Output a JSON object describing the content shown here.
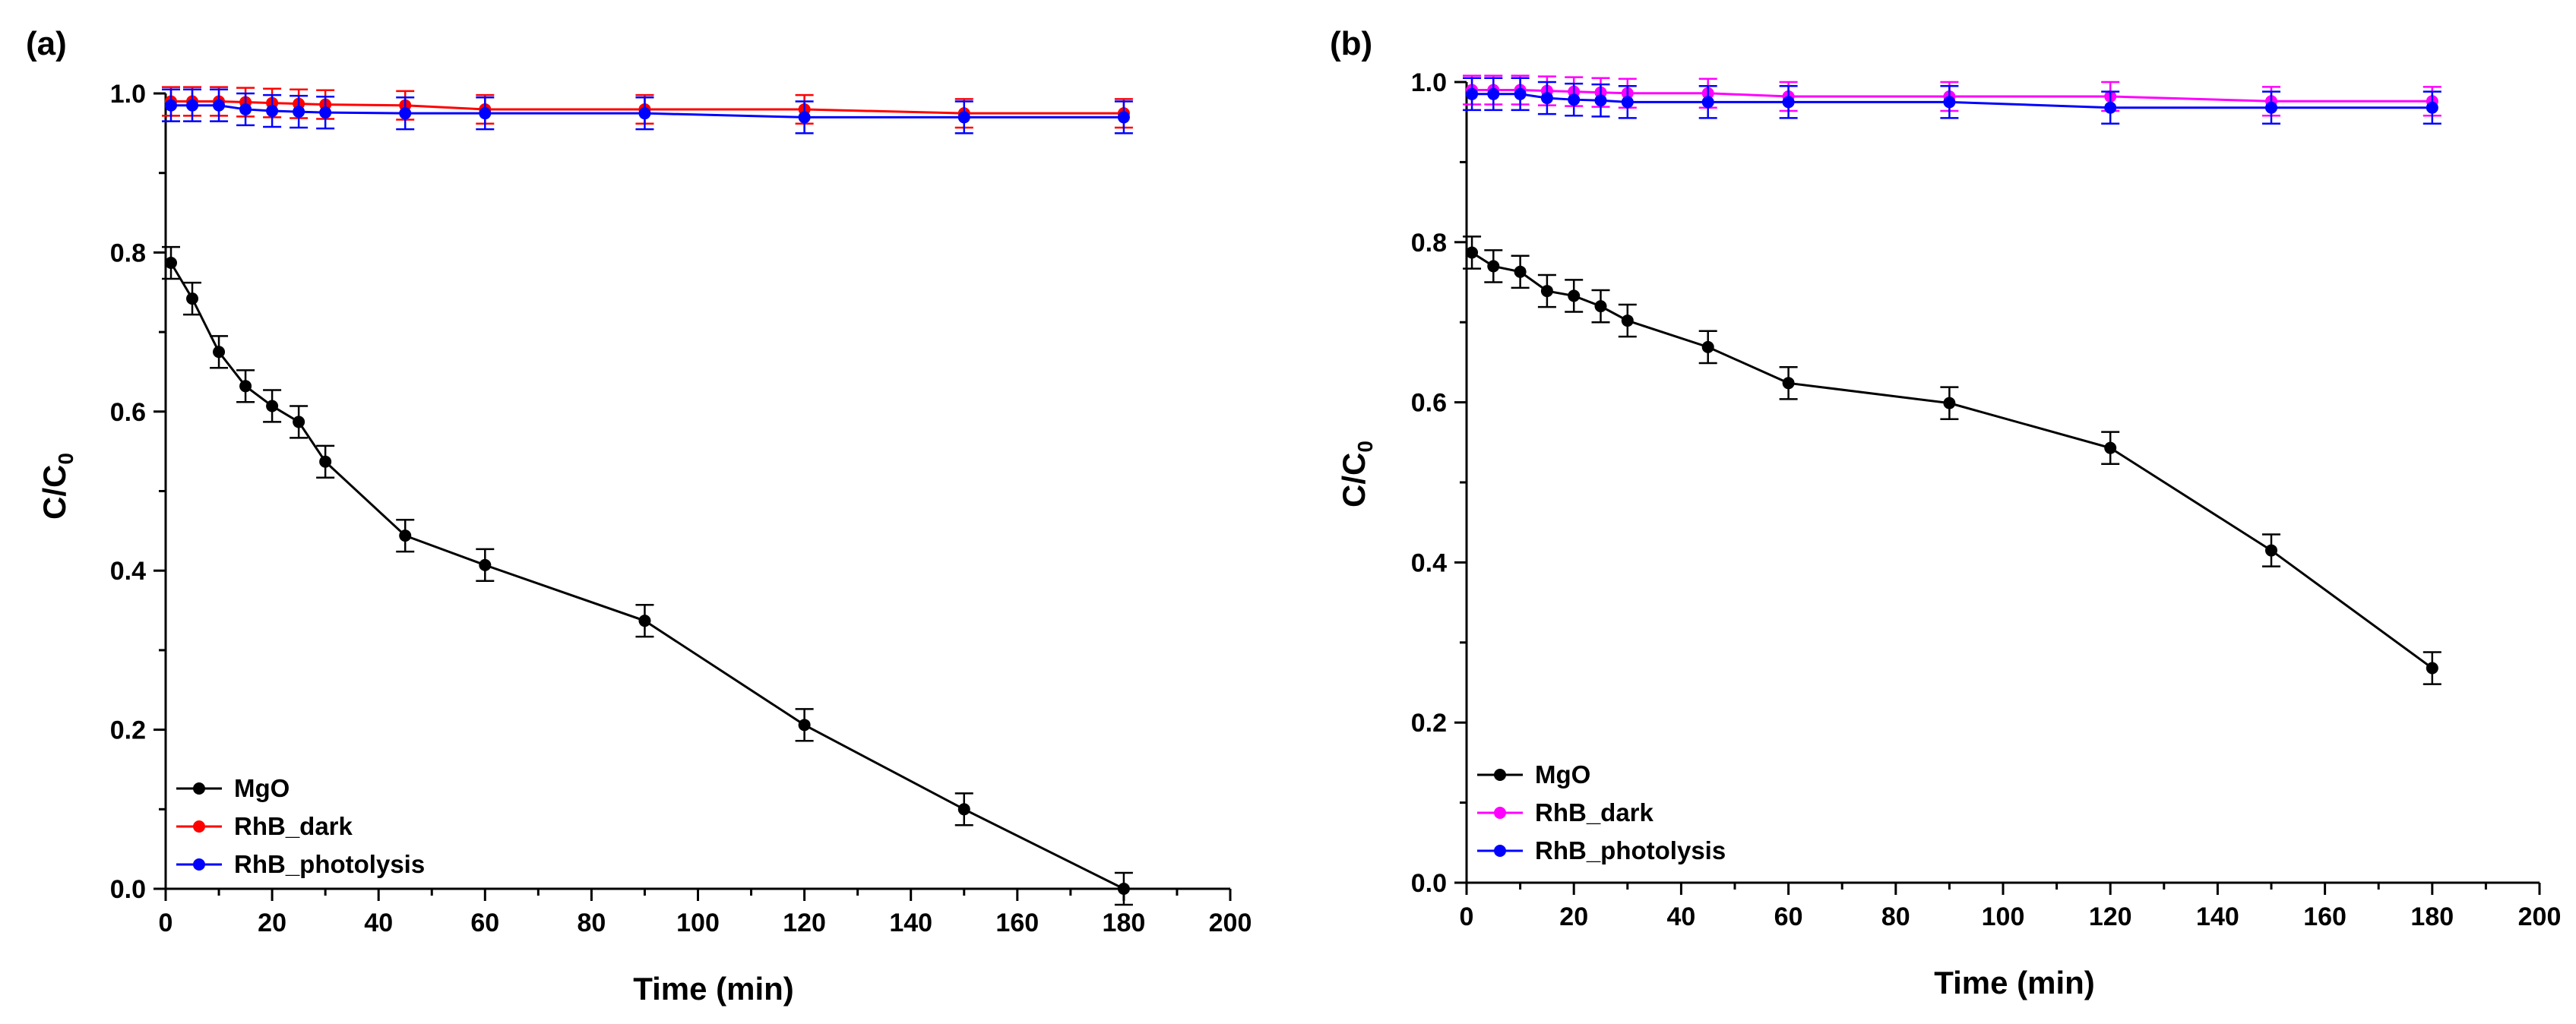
{
  "chart_data": [
    {
      "type": "line",
      "panel_label": "(a)",
      "title": "",
      "xlabel": "Time (min)",
      "ylabel_main": "C/C",
      "ylabel_sub": "0",
      "xlim": [
        0,
        200
      ],
      "ylim": [
        0,
        1.0
      ],
      "xticks": [
        0,
        20,
        40,
        60,
        80,
        100,
        120,
        140,
        160,
        180,
        200
      ],
      "yticks": [
        0.0,
        0.2,
        0.4,
        0.6,
        0.8,
        1.0
      ],
      "xtick_labels": [
        "0",
        "20",
        "40",
        "60",
        "80",
        "100",
        "120",
        "140",
        "160",
        "180",
        "200"
      ],
      "ytick_labels": [
        "0.0",
        "0.2",
        "0.4",
        "0.6",
        "0.8",
        "1.0"
      ],
      "grid": false,
      "legend_position": "bottom-left",
      "series": [
        {
          "name": "MgO",
          "color": "#000000",
          "x": [
            1,
            5,
            10,
            15,
            20,
            25,
            30,
            45,
            60,
            90,
            120,
            150,
            180
          ],
          "y": [
            0.787,
            0.742,
            0.675,
            0.632,
            0.607,
            0.587,
            0.537,
            0.444,
            0.407,
            0.337,
            0.206,
            0.1,
            0.0
          ],
          "err": [
            0.02,
            0.02,
            0.02,
            0.02,
            0.02,
            0.02,
            0.02,
            0.02,
            0.02,
            0.02,
            0.02,
            0.02,
            0.02
          ]
        },
        {
          "name": "RhB_dark",
          "color": "#ff0000",
          "x": [
            1,
            5,
            10,
            15,
            20,
            25,
            30,
            45,
            60,
            90,
            120,
            150,
            180
          ],
          "y": [
            0.99,
            0.99,
            0.99,
            0.989,
            0.988,
            0.987,
            0.986,
            0.985,
            0.98,
            0.98,
            0.98,
            0.975,
            0.975
          ],
          "err": [
            0.018,
            0.018,
            0.018,
            0.018,
            0.018,
            0.018,
            0.018,
            0.018,
            0.018,
            0.018,
            0.018,
            0.018,
            0.018
          ]
        },
        {
          "name": "RhB_photolysis",
          "color": "#0000ff",
          "x": [
            1,
            5,
            10,
            15,
            20,
            25,
            30,
            45,
            60,
            90,
            120,
            150,
            180
          ],
          "y": [
            0.985,
            0.985,
            0.985,
            0.98,
            0.978,
            0.977,
            0.976,
            0.975,
            0.975,
            0.975,
            0.97,
            0.97,
            0.97
          ],
          "err": [
            0.02,
            0.02,
            0.02,
            0.02,
            0.02,
            0.02,
            0.02,
            0.02,
            0.02,
            0.02,
            0.02,
            0.02,
            0.02
          ]
        }
      ]
    },
    {
      "type": "line",
      "panel_label": "(b)",
      "title": "",
      "xlabel": "Time (min)",
      "ylabel_main": "C/C",
      "ylabel_sub": "0",
      "xlim": [
        0,
        200
      ],
      "ylim": [
        0,
        1.0
      ],
      "xticks": [
        0,
        20,
        40,
        60,
        80,
        100,
        120,
        140,
        160,
        180,
        200
      ],
      "yticks": [
        0.0,
        0.2,
        0.4,
        0.6,
        0.8,
        1.0
      ],
      "xtick_labels": [
        "0",
        "20",
        "40",
        "60",
        "80",
        "100",
        "120",
        "140",
        "160",
        "180",
        "200"
      ],
      "ytick_labels": [
        "0.0",
        "0.2",
        "0.4",
        "0.6",
        "0.8",
        "1.0"
      ],
      "grid": false,
      "legend_position": "bottom-left",
      "series": [
        {
          "name": "MgO",
          "color": "#000000",
          "x": [
            1,
            5,
            10,
            15,
            20,
            25,
            30,
            45,
            60,
            90,
            120,
            150,
            180
          ],
          "y": [
            0.787,
            0.77,
            0.763,
            0.739,
            0.733,
            0.72,
            0.702,
            0.669,
            0.624,
            0.599,
            0.543,
            0.415,
            0.268
          ],
          "err": [
            0.02,
            0.02,
            0.02,
            0.02,
            0.02,
            0.02,
            0.02,
            0.02,
            0.02,
            0.02,
            0.02,
            0.02,
            0.02
          ]
        },
        {
          "name": "RhB_dark",
          "color": "#ff00ff",
          "x": [
            1,
            5,
            10,
            15,
            20,
            25,
            30,
            45,
            60,
            90,
            120,
            150,
            180
          ],
          "y": [
            0.99,
            0.99,
            0.99,
            0.989,
            0.988,
            0.987,
            0.986,
            0.986,
            0.982,
            0.982,
            0.982,
            0.976,
            0.976
          ],
          "err": [
            0.018,
            0.018,
            0.018,
            0.018,
            0.018,
            0.018,
            0.018,
            0.018,
            0.018,
            0.018,
            0.018,
            0.018,
            0.018
          ]
        },
        {
          "name": "RhB_photolysis",
          "color": "#0000ff",
          "x": [
            1,
            5,
            10,
            15,
            20,
            25,
            30,
            45,
            60,
            90,
            120,
            150,
            180
          ],
          "y": [
            0.985,
            0.985,
            0.985,
            0.98,
            0.978,
            0.977,
            0.975,
            0.975,
            0.975,
            0.975,
            0.968,
            0.968,
            0.968
          ],
          "err": [
            0.02,
            0.02,
            0.02,
            0.02,
            0.02,
            0.02,
            0.02,
            0.02,
            0.02,
            0.02,
            0.02,
            0.02,
            0.02
          ]
        }
      ]
    }
  ]
}
